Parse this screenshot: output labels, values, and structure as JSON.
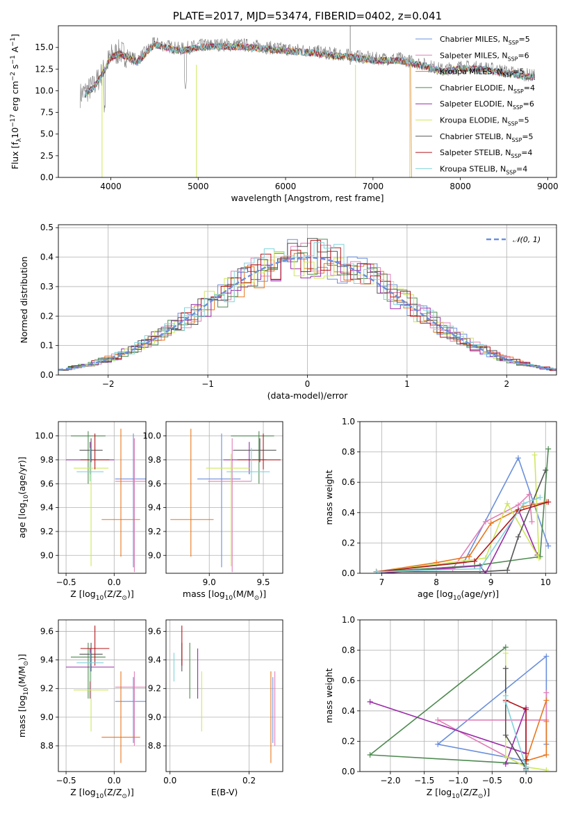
{
  "chart_data": [
    {
      "type": "line",
      "id": "spectrum",
      "title": "PLATE=2017, MJD=53474, FIBERID=0402, z=0.041",
      "xlabel": "wavelength [Angstrom, rest frame]",
      "ylabel": "Flux [f$_\\lambda$10$^{-17}$ erg cm$^{-2}$ s$^{-1}$ A$^{-1}$]",
      "xlim": [
        3400,
        9100
      ],
      "ylim": [
        0,
        17.5
      ],
      "xticks": [
        "4000",
        "5000",
        "6000",
        "7000",
        "8000",
        "9000"
      ],
      "yticks": [
        "0.0",
        "2.5",
        "5.0",
        "7.5",
        "10.0",
        "12.5",
        "15.0"
      ],
      "grid": false,
      "legend": "top-right",
      "data_continuum": [
        [
          3650,
          9.5
        ],
        [
          3800,
          10.5
        ],
        [
          3900,
          12.0
        ],
        [
          4000,
          14.0
        ],
        [
          4100,
          14.5
        ],
        [
          4300,
          13.5
        ],
        [
          4500,
          15.5
        ],
        [
          4800,
          14.8
        ],
        [
          5000,
          15.2
        ],
        [
          5200,
          15.3
        ],
        [
          5500,
          15.3
        ],
        [
          5800,
          15.0
        ],
        [
          6000,
          14.8
        ],
        [
          6300,
          14.6
        ],
        [
          6500,
          14.3
        ],
        [
          6800,
          14.0
        ],
        [
          7000,
          13.7
        ],
        [
          7300,
          13.7
        ],
        [
          7600,
          13.0
        ],
        [
          7800,
          12.4
        ],
        [
          8000,
          12.8
        ],
        [
          8300,
          12.6
        ],
        [
          8600,
          12.1
        ],
        [
          8850,
          11.7
        ]
      ]
    },
    {
      "type": "line",
      "id": "residuals",
      "title": "",
      "xlabel": "(data-model)/error",
      "ylabel": "Normed distribution",
      "xlim": [
        -2.5,
        2.5
      ],
      "ylim": [
        0,
        0.51
      ],
      "xticks": [
        "−2",
        "−1",
        "0",
        "1",
        "2"
      ],
      "yticks": [
        "0.0",
        "0.1",
        "0.2",
        "0.3",
        "0.4",
        "0.5"
      ],
      "grid": true,
      "legend": "top-right",
      "gauss_label": "𝒩(0, 1)"
    },
    {
      "type": "scatter",
      "id": "age-vs-Z",
      "xlabel": "Z [log$_{10}$(Z/Z$_\\odot$)]",
      "ylabel": "age  [log$_{10}$(age/yr)]",
      "xlim": [
        -0.58,
        0.33
      ],
      "ylim": [
        8.85,
        10.12
      ],
      "xticks": [
        "−0.5",
        "0.0"
      ],
      "yticks": [
        "9.0",
        "9.2",
        "9.4",
        "9.6",
        "9.8",
        "10.0"
      ],
      "grid": true
    },
    {
      "type": "scatter",
      "id": "age-vs-mass",
      "xlabel": "mass [log$_{10}$(M/M$_\\odot$)]",
      "ylabel": "",
      "xlim": [
        8.6,
        9.68
      ],
      "ylim": [
        8.85,
        10.12
      ],
      "xticks": [
        "9.0",
        "9.5"
      ],
      "yticks": [
        "9.0",
        "9.2",
        "9.4",
        "9.6",
        "9.8",
        "10.0"
      ],
      "grid": true
    },
    {
      "type": "line",
      "id": "weight-vs-age",
      "xlabel": "age  [log$_{10}$(age/yr)]",
      "ylabel": "mass weight",
      "xlim": [
        6.6,
        10.2
      ],
      "ylim": [
        0,
        1
      ],
      "xticks": [
        "7",
        "8",
        "9",
        "10"
      ],
      "yticks": [
        "0.0",
        "0.2",
        "0.4",
        "0.6",
        "0.8",
        "1.0"
      ],
      "grid": true
    },
    {
      "type": "scatter",
      "id": "mass-vs-Z",
      "xlabel": "Z [log$_{10}$(Z/Z$_\\odot$)]",
      "ylabel": "mass [log$_{10}$(M/M$_\\odot$)]",
      "xlim": [
        -0.58,
        0.33
      ],
      "ylim": [
        8.62,
        9.68
      ],
      "xticks": [
        "−0.5",
        "0.0"
      ],
      "yticks": [
        "8.8",
        "9.0",
        "9.2",
        "9.4",
        "9.6"
      ],
      "grid": true
    },
    {
      "type": "scatter",
      "id": "mass-vs-ebv",
      "xlabel": "E(B-V)",
      "ylabel": "",
      "xlim": [
        -0.01,
        0.285
      ],
      "ylim": [
        8.62,
        9.68
      ],
      "xticks": [
        "0.0",
        "0.2"
      ],
      "yticks": [
        "8.8",
        "9.0",
        "9.2",
        "9.4",
        "9.6"
      ],
      "grid": true
    },
    {
      "type": "line",
      "id": "weight-vs-Z",
      "xlabel": "Z [log$_{10}$(Z/Z$_\\odot$)]",
      "ylabel": "mass weight",
      "xlim": [
        -2.45,
        0.45
      ],
      "ylim": [
        0,
        1
      ],
      "xticks": [
        "−2.0",
        "−1.5",
        "−1.0",
        "−0.5",
        "0.0"
      ],
      "yticks": [
        "0.0",
        "0.2",
        "0.4",
        "0.6",
        "0.8",
        "1.0"
      ],
      "grid": true
    }
  ],
  "series": [
    {
      "name": "Chabrier MILES, N$_{SSP}$=5",
      "color": "#6a8fdd",
      "Z": [
        0.03,
        0.2,
        0.34
      ],
      "Zerr": 0.19,
      "age": [
        8.9,
        9.64,
        10.02
      ],
      "agec": 9.64,
      "mass": 9.11,
      "masserr": [
        8.82,
        9.28
      ],
      "ebv": 0.26,
      "w_age": [
        [
          10.05,
          0.18
        ],
        [
          9.5,
          0.76
        ],
        [
          8.5,
          0.07
        ],
        [
          6.9,
          0.01
        ]
      ],
      "w_Z": [
        [
          0.3,
          0.18
        ],
        [
          0.3,
          0.76
        ],
        [
          -1.3,
          0.18
        ],
        [
          0.0,
          0.07
        ]
      ]
    },
    {
      "name": "Salpeter MILES, N$_{SSP}$=6",
      "color": "#e07fb8",
      "Z": [
        0.1,
        0.21,
        0.3
      ],
      "Zerr": 0.2,
      "age": [
        8.86,
        9.62,
        9.98
      ],
      "agec": 9.62,
      "mass": 9.21,
      "masserr": [
        8.8,
        9.32
      ],
      "ebv": 0.265,
      "w_age": [
        [
          9.75,
          0.34
        ],
        [
          9.7,
          0.52
        ],
        [
          9.5,
          0.45
        ],
        [
          8.9,
          0.34
        ],
        [
          8.3,
          0.03
        ],
        [
          6.9,
          0.01
        ]
      ],
      "w_Z": [
        [
          0.3,
          0.52
        ],
        [
          0.3,
          0.34
        ],
        [
          -1.3,
          0.34
        ],
        [
          0.0,
          0.03
        ]
      ]
    },
    {
      "name": "Kroupa MILES, N$_{SSP}$=5",
      "color": "#e8761d",
      "Z": [
        0.08,
        0.07,
        0.28
      ],
      "Zerr": 0.2,
      "age": [
        8.99,
        9.3,
        10.06
      ],
      "agec": 9.3,
      "mass": 8.86,
      "masserr": [
        8.68,
        9.32
      ],
      "ebv": 0.255,
      "w_age": [
        [
          10.02,
          0.47
        ],
        [
          9.6,
          0.44
        ],
        [
          9.0,
          0.33
        ],
        [
          8.6,
          0.11
        ],
        [
          8.0,
          0.07
        ],
        [
          6.9,
          0.01
        ]
      ],
      "w_Z": [
        [
          0.3,
          0.33
        ],
        [
          0.3,
          0.11
        ],
        [
          0.0,
          0.07
        ],
        [
          0.3,
          0.47
        ]
      ]
    },
    {
      "name": "Chabrier ELODIE, N$_{SSP}$=4",
      "color": "#4e8a50",
      "Z": [
        -0.21,
        -0.27,
        -0.05
      ],
      "Zerr": 0.18,
      "age": [
        9.6,
        10.0,
        10.04
      ],
      "agec": 10.0,
      "mass": 9.42,
      "masserr": [
        9.13,
        9.52
      ],
      "ebv": 0.05,
      "w_age": [
        [
          10.05,
          0.82
        ],
        [
          9.9,
          0.11
        ],
        [
          8.7,
          0.05
        ],
        [
          6.9,
          0.01
        ]
      ],
      "w_Z": [
        [
          -0.3,
          0.82
        ],
        [
          -2.3,
          0.11
        ],
        [
          0.0,
          0.05
        ]
      ]
    },
    {
      "name": "Salpeter ELODIE, N$_{SSP}$=6",
      "color": "#9a2aa8",
      "Z": [
        -0.32,
        -0.25,
        -0.05
      ],
      "Zerr": 0.25,
      "age": [
        9.68,
        9.8,
        9.95
      ],
      "agec": 9.8,
      "mass": 9.35,
      "masserr": [
        9.13,
        9.48
      ],
      "ebv": 0.07,
      "w_age": [
        [
          9.85,
          0.12
        ],
        [
          9.5,
          0.42
        ],
        [
          8.9,
          0.0
        ],
        [
          8.8,
          0.05
        ],
        [
          7.0,
          0.0
        ]
      ],
      "w_Z": [
        [
          -2.3,
          0.46
        ],
        [
          0.0,
          0.12
        ],
        [
          0.0,
          0.42
        ],
        [
          -0.3,
          0.05
        ]
      ]
    },
    {
      "name": "Kroupa ELODIE, N$_{SSP}$=5",
      "color": "#cde85a",
      "Z": [
        -0.28,
        -0.24,
        -0.15
      ],
      "Zerr": 0.18,
      "age": [
        8.91,
        9.73,
        9.85
      ],
      "agec": 9.73,
      "mass": 9.19,
      "masserr": [
        8.9,
        9.32
      ],
      "ebv": 0.08,
      "w_age": [
        [
          9.8,
          0.78
        ],
        [
          9.88,
          0.1
        ],
        [
          9.3,
          0.46
        ],
        [
          8.9,
          0.1
        ],
        [
          6.9,
          0.01
        ]
      ],
      "w_Z": [
        [
          -0.3,
          0.78
        ],
        [
          -0.3,
          0.1
        ],
        [
          0.0,
          0.03
        ],
        [
          0.3,
          0.01
        ]
      ]
    },
    {
      "name": "Chabrier STELIB, N$_{SSP}$=5",
      "color": "#555555",
      "Z": [
        -0.22,
        -0.24,
        -0.1
      ],
      "Zerr": 0.12,
      "age": [
        9.78,
        9.88,
        9.98
      ],
      "agec": 9.88,
      "mass": 9.44,
      "masserr": [
        9.32,
        9.52
      ],
      "ebv": 0.03,
      "w_age": [
        [
          10.0,
          0.68
        ],
        [
          9.5,
          0.24
        ],
        [
          9.3,
          0.02
        ],
        [
          8.8,
          0.01
        ],
        [
          6.9,
          0.01
        ]
      ],
      "w_Z": [
        [
          -0.3,
          0.68
        ],
        [
          -0.3,
          0.24
        ],
        [
          0.0,
          0.02
        ],
        [
          0.0,
          0.01
        ]
      ]
    },
    {
      "name": "Salpeter STELIB, N$_{SSP}$=4",
      "color": "#b0161a",
      "Z": [
        -0.23,
        -0.2,
        -0.18
      ],
      "Zerr": 0.15,
      "age": [
        9.72,
        9.8,
        10.02
      ],
      "agec": 9.8,
      "mass": 9.48,
      "masserr": [
        9.36,
        9.64
      ],
      "ebv": 0.03,
      "w_age": [
        [
          10.05,
          0.47
        ],
        [
          9.5,
          0.41
        ],
        [
          8.7,
          0.08
        ],
        [
          6.9,
          0.01
        ]
      ],
      "w_Z": [
        [
          -0.3,
          0.47
        ],
        [
          0.0,
          0.41
        ],
        [
          0.0,
          0.08
        ],
        [
          0.0,
          0.01
        ]
      ]
    },
    {
      "name": "Kroupa STELIB, N$_{SSP}$=4",
      "color": "#7fd3db",
      "Z": [
        -0.28,
        -0.25,
        -0.18
      ],
      "Zerr": 0.14,
      "age": [
        9.62,
        9.7,
        9.9
      ],
      "agec": 9.7,
      "mass": 9.38,
      "masserr": [
        9.25,
        9.45
      ],
      "ebv": 0.01,
      "w_age": [
        [
          9.9,
          0.5
        ],
        [
          9.6,
          0.46
        ],
        [
          8.8,
          0.03
        ],
        [
          6.9,
          0.01
        ]
      ],
      "w_Z": [
        [
          -0.3,
          0.5
        ],
        [
          -0.3,
          0.46
        ],
        [
          0.0,
          0.03
        ],
        [
          0.0,
          0.01
        ]
      ]
    }
  ]
}
